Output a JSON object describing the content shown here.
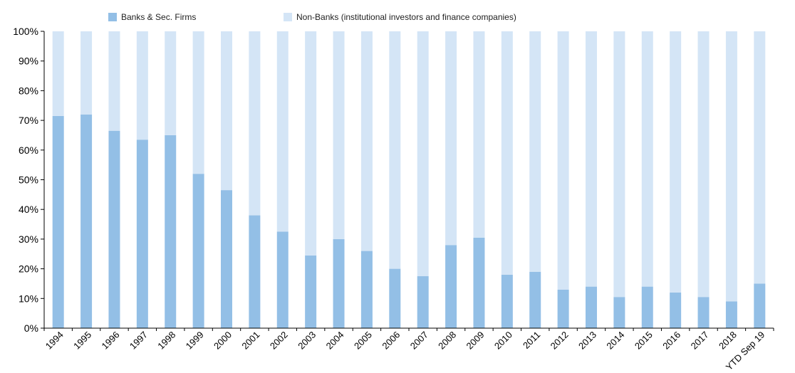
{
  "chart_data": {
    "type": "bar",
    "stacked": true,
    "percent": true,
    "title": "",
    "xlabel": "",
    "ylabel": "",
    "ylim": [
      0,
      100
    ],
    "yticks": [
      "0%",
      "10%",
      "20%",
      "30%",
      "40%",
      "50%",
      "60%",
      "70%",
      "80%",
      "90%",
      "100%"
    ],
    "categories": [
      "1994",
      "1995",
      "1996",
      "1997",
      "1998",
      "1999",
      "2000",
      "2001",
      "2002",
      "2003",
      "2004",
      "2005",
      "2006",
      "2007",
      "2008",
      "2009",
      "2010",
      "2011",
      "2012",
      "2013",
      "2014",
      "2015",
      "2016",
      "2017",
      "2018",
      "YTD Sep 19"
    ],
    "series": [
      {
        "name": "Banks & Sec. Firms",
        "color": "#93bfe6",
        "values": [
          71.5,
          72,
          66.5,
          63.5,
          65,
          52,
          46.5,
          38,
          32.5,
          24.5,
          30,
          26,
          20,
          17.5,
          28,
          30.5,
          18,
          19,
          13,
          14,
          10.5,
          14,
          12,
          10.5,
          9,
          15
        ]
      },
      {
        "name": "Non-Banks (institutional investors and finance companies)",
        "color": "#d4e5f6",
        "values": [
          28.5,
          28,
          33.5,
          36.5,
          35,
          48,
          53.5,
          62,
          67.5,
          75.5,
          70,
          74,
          80,
          82.5,
          72,
          69.5,
          82,
          81,
          87,
          86,
          89.5,
          86,
          88,
          89.5,
          91,
          85
        ]
      }
    ],
    "legend_position": "top",
    "grid": false
  }
}
